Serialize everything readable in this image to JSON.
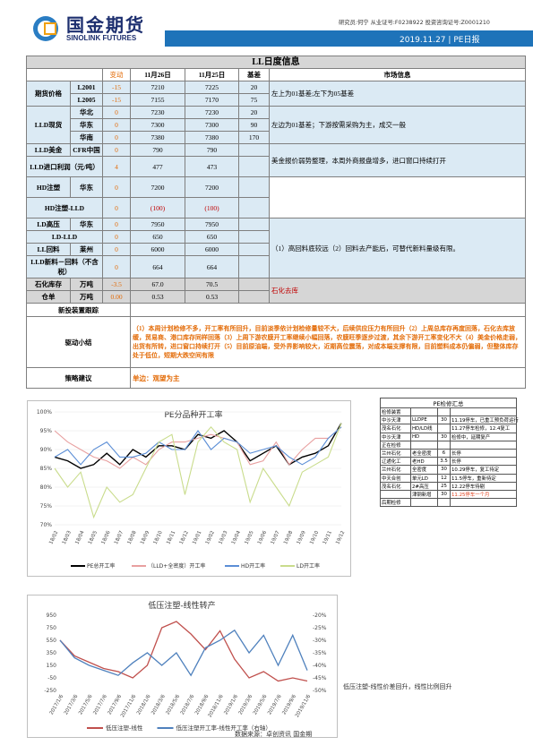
{
  "header": {
    "logo_cn": "国金期货",
    "logo_en": "SINOLINK FUTURES",
    "analyst": "研究员:何宁 从业证号:F0238922 投资咨询证号:Z0001210",
    "date": "2019.11.27",
    "report": "PE日报"
  },
  "main_table": {
    "title": "LL日度信息",
    "cols": [
      "变动",
      "11月26日",
      "11月25日",
      "基差",
      "市场信息"
    ],
    "futures": {
      "label": "期货价格",
      "rows": [
        {
          "name": "L2001",
          "chg": "-15",
          "d1": "7210",
          "d2": "7225",
          "basis": "20"
        },
        {
          "name": "L2005",
          "chg": "-15",
          "d1": "7155",
          "d2": "7170",
          "basis": "75"
        }
      ],
      "info": "左上为01基差;左下为05基差"
    },
    "spot": {
      "label": "LLD现货",
      "rows": [
        {
          "name": "华北",
          "chg": "0",
          "d1": "7230",
          "d2": "7230",
          "basis": "20"
        },
        {
          "name": "华东",
          "chg": "0",
          "d1": "7300",
          "d2": "7300",
          "basis": "90"
        },
        {
          "name": "华南",
          "chg": "0",
          "d1": "7380",
          "d2": "7380",
          "basis": "170"
        }
      ],
      "info": "左边为01基差；下游按需采购为主，成交一般"
    },
    "usd": {
      "label": "LLD美金",
      "sub": "CFR中国",
      "chg": "0",
      "d1": "790",
      "d2": "790"
    },
    "import": {
      "label": "LLD进口利润（元/吨）",
      "chg": "4",
      "d1": "477",
      "d2": "473"
    },
    "usd_info": "美金报价弱势整理，本周外商报盘增多，进口窗口持续打开",
    "hd": {
      "label": "HD注塑",
      "sub": "华东",
      "chg": "0",
      "d1": "7200",
      "d2": "7200"
    },
    "hd_spread": {
      "label": "HD注塑-LLD",
      "chg": "0",
      "d1": "(100)",
      "d2": "(100)"
    },
    "ld": {
      "label": "LD高压",
      "sub": "华东",
      "chg": "0",
      "d1": "7950",
      "d2": "7950"
    },
    "ld_spread": {
      "label": "LD-LLD",
      "chg": "0",
      "d1": "650",
      "d2": "650"
    },
    "ll_recycle": {
      "label": "LL回料",
      "sub": "莱州",
      "chg": "0",
      "d1": "6000",
      "d2": "6000"
    },
    "new_recycle": {
      "label": "LLD新料－回料（不含税）",
      "chg": "0",
      "d1": "664",
      "d2": "664"
    },
    "recycle_info": "（1）高回料底较远（2）回料去产能后，可替代新料量级有限。",
    "petro": {
      "label": "石化库存",
      "unit": "万吨",
      "chg": "-3.5",
      "d1": "67.0",
      "d2": "70.5"
    },
    "petro_info": "石化去库",
    "warrant": {
      "label": "仓单",
      "unit": "万吨",
      "chg": "0.00",
      "d1": "0.53",
      "d2": "0.53"
    },
    "new_capacity": "新投装置跟踪",
    "driver_label": "驱动小结",
    "driver_text": "（1）本周计划检修不多，开工率有所回升，目前淡季依计划检修量较不大，后续供应压力有所回升（2）上周总库存再度回落，石化去库放缓，贸易商、港口库存同样回落（3）上周下游农膜开工率继续小幅回落，农膜旺季逐步过渡，其余下游开工率变化不大（4）美金价格走弱，出货有所转，进口窗口持续打开（5）目前原油端，受外界影响较大，近期高位震荡，对成本端支撑有限，目前塑料成本仍偏弱，但整体库存处于低位，短期大跌空间有限",
    "strategy_label": "策略建议",
    "strategy_text": "单边：观望为主"
  },
  "pe_chart": {
    "title": "PE分品种开工率"
  },
  "repair": {
    "title": "PE检修汇总",
    "rows": [
      {
        "c1": "检修装置",
        "c2": "",
        "c3": "",
        "c4": ""
      },
      {
        "c1": "中沙天津",
        "c2": "LLDPE",
        "c3": "30",
        "c4": "11.19停车，已重工预负荷运行"
      },
      {
        "c1": "茂名石化",
        "c2": "HD/LD线",
        "c3": "",
        "c4": "11.27停车检修，12.4复工"
      },
      {
        "c1": "中沙天津",
        "c2": "HD",
        "c3": "30",
        "c4": "检修中，延期复产"
      },
      {
        "c1": "正在检修",
        "c2": "",
        "c3": "",
        "c4": ""
      },
      {
        "c1": "兰州石化",
        "c2": "老全密度",
        "c3": "6",
        "c4": "长停"
      },
      {
        "c1": "辽通化工",
        "c2": "老HD",
        "c3": "3.5",
        "c4": "长停"
      },
      {
        "c1": "兰州石化",
        "c2": "全密度",
        "c3": "30",
        "c4": "10.29停车，复工待定"
      },
      {
        "c1": "中天合创",
        "c2": "单元LD",
        "c3": "12",
        "c4": "11.5停车，重新待定"
      },
      {
        "c1": "茂名石化",
        "c2": "2#高压",
        "c3": "25",
        "c4": "12.22停车待剔"
      },
      {
        "c1": "",
        "c2": "津钢新增",
        "c3": "30",
        "c4": "11.25停车一个月"
      },
      {
        "c1": "后期检修",
        "c2": "",
        "c3": "",
        "c4": ""
      }
    ]
  },
  "lp_chart": {
    "title": "低压注塑-线性转产"
  },
  "side_note": "低压注塑-线性价差回升，线性比例回升",
  "source": "数据来源：卓创资讯 国金期",
  "chart_data": [
    {
      "type": "line",
      "title": "PE分品种开工率",
      "categories": [
        "18/02",
        "18/03",
        "18/04",
        "18/05",
        "18/06",
        "18/07",
        "18/08",
        "18/09",
        "18/10",
        "18/11",
        "18/12",
        "19/01",
        "19/02",
        "19/03",
        "19/04",
        "19/05",
        "19/06",
        "19/07",
        "19/08",
        "19/09",
        "19/10",
        "19/11",
        "19/12"
      ],
      "ylim": [
        70,
        100
      ],
      "yticks": [
        "70%",
        "75%",
        "80%",
        "85%",
        "90%",
        "95%",
        "100%"
      ],
      "series": [
        {
          "name": "PE总开工率",
          "color": "#000000",
          "values": [
            88,
            87,
            85,
            86,
            89,
            86,
            90,
            88,
            91,
            91,
            90,
            94,
            93,
            95,
            92,
            87,
            89,
            91,
            86,
            88,
            89,
            91,
            97
          ]
        },
        {
          "name": "（LLD+全密度）开工率",
          "color": "#e8a0a0",
          "values": [
            95,
            92,
            90,
            88,
            87,
            85,
            88,
            86,
            90,
            92,
            92,
            93,
            94,
            93,
            92,
            86,
            87,
            92,
            86,
            90,
            93,
            93,
            96
          ]
        },
        {
          "name": "HD开工率",
          "color": "#5b8ed6",
          "values": [
            88,
            90,
            86,
            90,
            92,
            88,
            88,
            89,
            92,
            90,
            90,
            95,
            90,
            93,
            92,
            89,
            90,
            91,
            88,
            86,
            88,
            93,
            96
          ]
        },
        {
          "name": "LD开工率",
          "color": "#c9dc8c",
          "values": [
            85,
            80,
            84,
            72,
            80,
            76,
            78,
            85,
            92,
            94,
            78,
            92,
            96,
            92,
            90,
            76,
            85,
            80,
            75,
            84,
            86,
            88,
            97
          ]
        }
      ]
    },
    {
      "type": "line",
      "title": "低压注塑-线性转产",
      "categories": [
        "2017/1/6",
        "2017/3/6",
        "2017/5/6",
        "2017/7/6",
        "2017/9/6",
        "2017/11/6",
        "2018/1/6",
        "2018/3/6",
        "2018/5/6",
        "2018/7/6",
        "2018/9/6",
        "2018/11/6",
        "2019/1/6",
        "2019/3/6",
        "2019/5/6",
        "2019/7/6",
        "2019/9/6",
        "2019/11/6"
      ],
      "ylim_left": [
        -250,
        950
      ],
      "yticks_left": [
        "-250",
        "-50",
        "150",
        "350",
        "550",
        "750",
        "950"
      ],
      "ylim_right": [
        -50,
        -20
      ],
      "yticks_right": [
        "-50%",
        "-45%",
        "-40%",
        "-35%",
        "-30%",
        "-25%",
        "-20%"
      ],
      "series": [
        {
          "name": "低压注塑-线性",
          "axis": "left",
          "color": "#c0504d",
          "values": [
            550,
            300,
            200,
            100,
            50,
            -50,
            150,
            750,
            850,
            650,
            400,
            700,
            250,
            -50,
            50,
            -100,
            -50,
            -100
          ]
        },
        {
          "name": "低压注塑开工率-线性开工率（右轴）",
          "axis": "right",
          "color": "#4f81bd",
          "values": [
            -30,
            -37,
            -40,
            -42,
            -44,
            -39,
            -35,
            -40,
            -35,
            -44,
            -33,
            -30,
            -26,
            -35,
            -28,
            -40,
            -28,
            -42
          ]
        }
      ]
    }
  ]
}
